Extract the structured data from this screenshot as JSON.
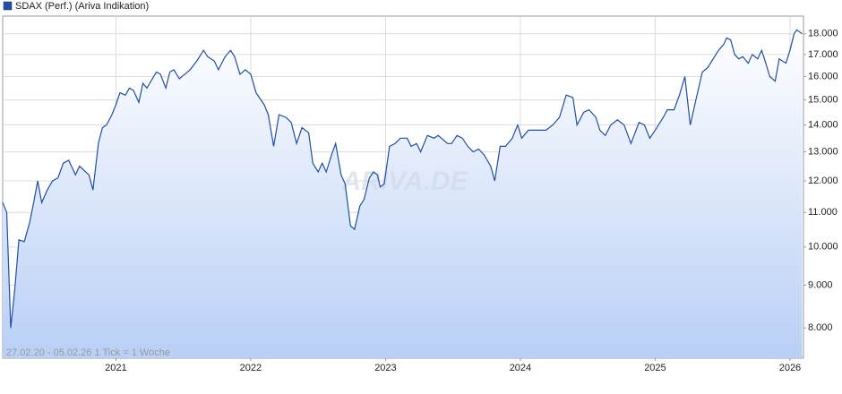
{
  "chart_data": {
    "type": "line",
    "series": [
      {
        "name": "SDAX (Perf.) (Ariva Indikation)",
        "color": "#1f4fa8",
        "x": [
          2020.16,
          2020.19,
          2020.22,
          2020.25,
          2020.28,
          2020.32,
          2020.36,
          2020.39,
          2020.42,
          2020.45,
          2020.49,
          2020.53,
          2020.57,
          2020.61,
          2020.65,
          2020.7,
          2020.73,
          2020.8,
          2020.83,
          2020.87,
          2020.9,
          2020.93,
          2020.97,
          2021.0,
          2021.03,
          2021.07,
          2021.1,
          2021.13,
          2021.17,
          2021.2,
          2021.23,
          2021.27,
          2021.3,
          2021.33,
          2021.37,
          2021.4,
          2021.43,
          2021.47,
          2021.51,
          2021.55,
          2021.6,
          2021.65,
          2021.68,
          2021.73,
          2021.76,
          2021.81,
          2021.85,
          2021.88,
          2021.92,
          2021.96,
          2022.0,
          2022.04,
          2022.1,
          2022.13,
          2022.17,
          2022.21,
          2022.26,
          2022.3,
          2022.34,
          2022.38,
          2022.43,
          2022.46,
          2022.5,
          2022.53,
          2022.56,
          2022.6,
          2022.63,
          2022.67,
          2022.7,
          2022.74,
          2022.77,
          2022.81,
          2022.84,
          2022.88,
          2022.91,
          2022.94,
          2022.96,
          2022.99,
          2023.03,
          2023.07,
          2023.11,
          2023.16,
          2023.19,
          2023.23,
          2023.26,
          2023.31,
          2023.36,
          2023.39,
          2023.46,
          2023.49,
          2023.53,
          2023.57,
          2023.61,
          2023.65,
          2023.69,
          2023.73,
          2023.78,
          2023.81,
          2023.85,
          2023.89,
          2023.94,
          2023.98,
          2024.01,
          2024.06,
          2024.12,
          2024.19,
          2024.24,
          2024.29,
          2024.34,
          2024.39,
          2024.42,
          2024.47,
          2024.51,
          2024.56,
          2024.59,
          2024.63,
          2024.67,
          2024.72,
          2024.77,
          2024.82,
          2024.88,
          2024.92,
          2024.96,
          2025.0,
          2025.06,
          2025.09,
          2025.14,
          2025.18,
          2025.22,
          2025.26,
          2025.31,
          2025.35,
          2025.39,
          2025.43,
          2025.47,
          2025.51,
          2025.53,
          2025.56,
          2025.59,
          2025.62,
          2025.65,
          2025.69,
          2025.72,
          2025.76,
          2025.79,
          2025.82,
          2025.85,
          2025.89,
          2025.92,
          2025.97,
          2026.0,
          2026.03,
          2026.05,
          2026.09
        ],
        "values": [
          11300,
          11000,
          8000,
          8900,
          10200,
          10150,
          10700,
          11300,
          12000,
          11300,
          11700,
          12000,
          12100,
          12600,
          12700,
          12200,
          12500,
          12200,
          11700,
          13320,
          13900,
          14000,
          14400,
          14800,
          15300,
          15200,
          15500,
          15400,
          14900,
          15700,
          15500,
          15900,
          16200,
          16100,
          15500,
          16200,
          16300,
          15900,
          16100,
          16300,
          16700,
          17200,
          16900,
          16700,
          16300,
          16900,
          17200,
          16900,
          16100,
          16300,
          16100,
          15300,
          14800,
          14400,
          13200,
          14400,
          14300,
          14100,
          13300,
          13900,
          13700,
          12600,
          12300,
          12600,
          12300,
          12900,
          13300,
          12200,
          11900,
          10600,
          10500,
          11200,
          11400,
          12100,
          12300,
          12200,
          11800,
          11900,
          13200,
          13300,
          13500,
          13500,
          13200,
          13300,
          13000,
          13600,
          13500,
          13600,
          13300,
          13300,
          13600,
          13500,
          13200,
          13000,
          13100,
          12900,
          12500,
          12000,
          13200,
          13200,
          13500,
          14000,
          13500,
          13800,
          13800,
          13800,
          14000,
          14300,
          15200,
          15100,
          14000,
          14500,
          14600,
          14300,
          13800,
          13600,
          14000,
          14200,
          14000,
          13300,
          14100,
          14000,
          13500,
          13800,
          14300,
          14600,
          14600,
          15200,
          16000,
          14000,
          15200,
          16200,
          16400,
          16800,
          17200,
          17500,
          17800,
          17700,
          17000,
          16800,
          16900,
          16600,
          17000,
          16800,
          17200,
          16600,
          16000,
          15800,
          16800,
          16600,
          17200,
          18000,
          18200,
          18000
        ]
      }
    ],
    "xlim": [
      2020.16,
      2026.1
    ],
    "xticks": [
      2021,
      2022,
      2023,
      2024,
      2025,
      2026
    ],
    "ylim": [
      7360,
      18900
    ],
    "log_y": true,
    "yticks": [
      {
        "value": 8000,
        "label": "8.000"
      },
      {
        "value": 9000,
        "label": "9.000"
      },
      {
        "value": 10000,
        "label": "10.000"
      },
      {
        "value": 11000,
        "label": "11.000"
      },
      {
        "value": 12000,
        "label": "12.000"
      },
      {
        "value": 13000,
        "label": "13.000"
      },
      {
        "value": 14000,
        "label": "14.000"
      },
      {
        "value": 15000,
        "label": "15.000"
      },
      {
        "value": 16000,
        "label": "16.000"
      },
      {
        "value": 17000,
        "label": "17.000"
      },
      {
        "value": 18000,
        "label": "18.000"
      }
    ],
    "grid": true,
    "footnote": "27.02.20 - 05.02.26   1 Tick = 1 Woche",
    "watermark": "ARIVA.DE"
  }
}
